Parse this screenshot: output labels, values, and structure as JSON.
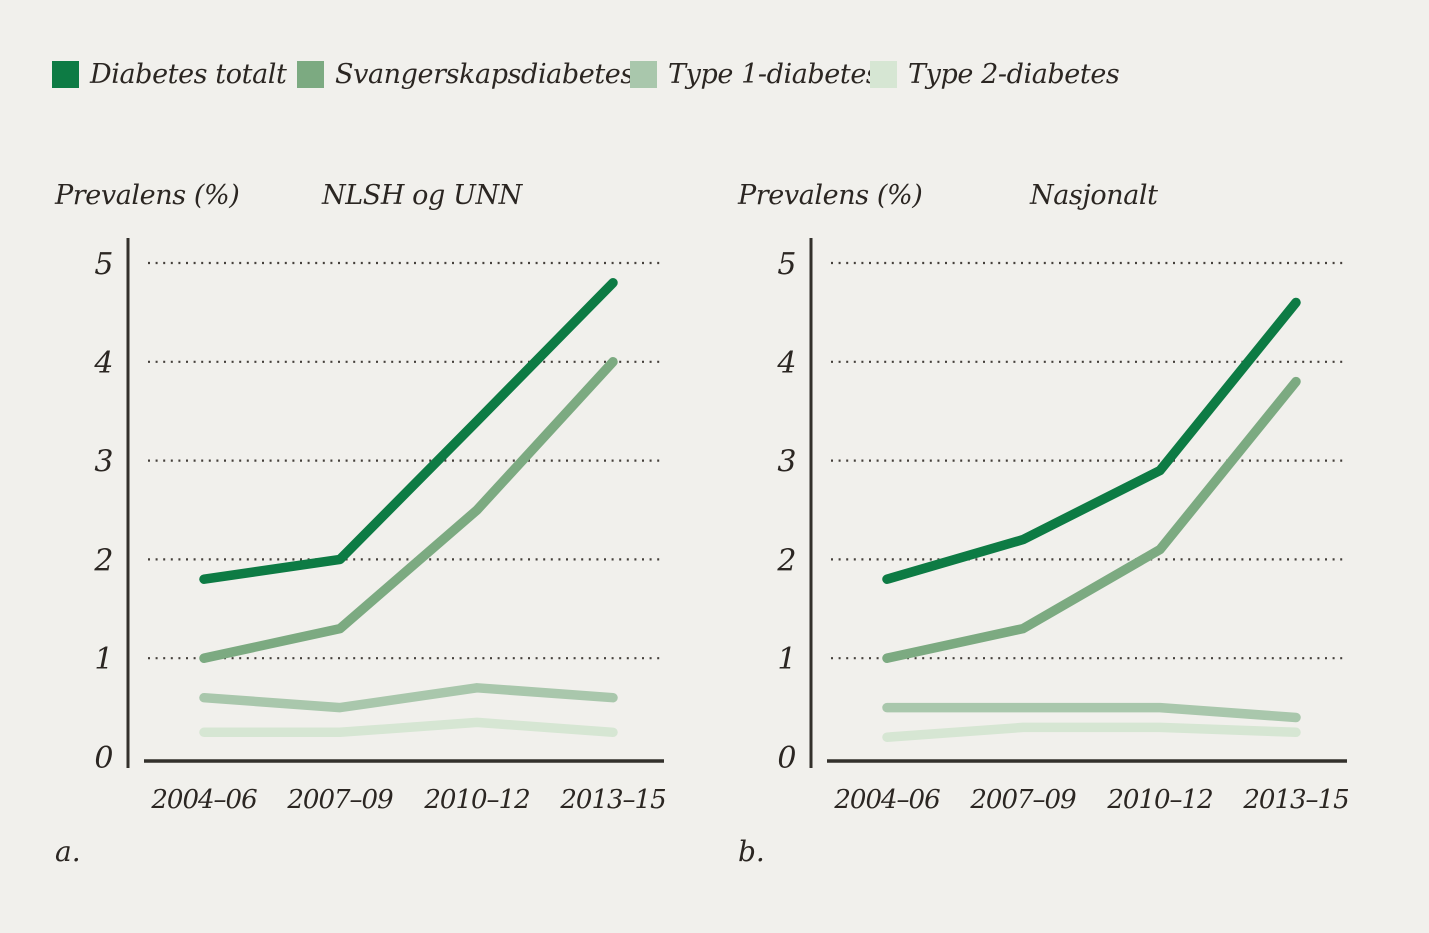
{
  "legend": {
    "items": [
      {
        "label": "Diabetes totalt",
        "color": "#0d7b44"
      },
      {
        "label": "Svangerskapsdiabetes",
        "color": "#7caa81"
      },
      {
        "label": "Type 1-diabetes",
        "color": "#a9c7ac"
      },
      {
        "label": "Type 2-diabetes",
        "color": "#d6e6d3"
      }
    ]
  },
  "chart_data": [
    {
      "type": "line",
      "panel_label": "a.",
      "title": "NLSH og UNN",
      "ylabel": "Prevalens (%)",
      "categories": [
        "2004–06",
        "2007–09",
        "2010–12",
        "2013–15"
      ],
      "ylim": [
        0,
        5
      ],
      "yticks": [
        0,
        1,
        2,
        3,
        4,
        5
      ],
      "grid": "horizontal dotted lines at 1,2,3,4,5",
      "legend_position": "top-shared",
      "series": [
        {
          "name": "Diabetes totalt",
          "color": "#0d7b44",
          "values": [
            1.8,
            2.0,
            3.4,
            4.8
          ]
        },
        {
          "name": "Svangerskapsdiabetes",
          "color": "#7caa81",
          "values": [
            1.0,
            1.3,
            2.5,
            4.0
          ]
        },
        {
          "name": "Type 1-diabetes",
          "color": "#a9c7ac",
          "values": [
            0.6,
            0.5,
            0.7,
            0.6
          ]
        },
        {
          "name": "Type 2-diabetes",
          "color": "#d6e6d3",
          "values": [
            0.25,
            0.25,
            0.35,
            0.25
          ]
        }
      ]
    },
    {
      "type": "line",
      "panel_label": "b.",
      "title": "Nasjonalt",
      "ylabel": "Prevalens (%)",
      "categories": [
        "2004–06",
        "2007–09",
        "2010–12",
        "2013–15"
      ],
      "ylim": [
        0,
        5
      ],
      "yticks": [
        0,
        1,
        2,
        3,
        4,
        5
      ],
      "grid": "horizontal dotted lines at 1,2,3,4,5",
      "legend_position": "top-shared",
      "series": [
        {
          "name": "Diabetes totalt",
          "color": "#0d7b44",
          "values": [
            1.8,
            2.2,
            2.9,
            4.6
          ]
        },
        {
          "name": "Svangerskapsdiabetes",
          "color": "#7caa81",
          "values": [
            1.0,
            1.3,
            2.1,
            3.8
          ]
        },
        {
          "name": "Type 1-diabetes",
          "color": "#a9c7ac",
          "values": [
            0.5,
            0.5,
            0.5,
            0.4
          ]
        },
        {
          "name": "Type 2-diabetes",
          "color": "#d6e6d3",
          "values": [
            0.2,
            0.3,
            0.3,
            0.25
          ]
        }
      ]
    }
  ],
  "colors": {
    "background": "#f1f0ec",
    "text": "#2b2622",
    "gridline": "#45403b",
    "axis": "#33302b"
  }
}
